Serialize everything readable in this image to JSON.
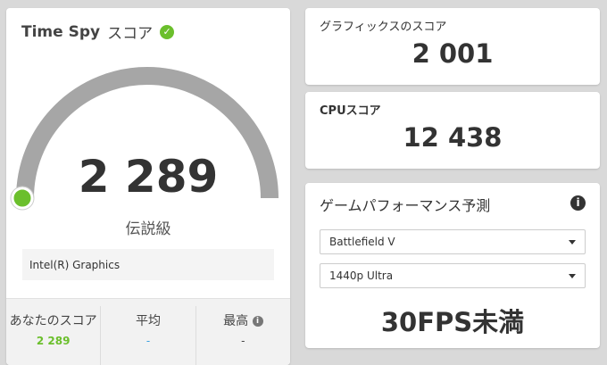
{
  "main": {
    "title_en": "Time Spy",
    "title_jp": "スコア",
    "score": "2 289",
    "score_fraction": 0.0,
    "rank": "伝説級",
    "gpu": "Intel(R) Graphics",
    "stats": [
      {
        "label": "あなたのスコア",
        "value": "2 289",
        "color": "#6bbf2c"
      },
      {
        "label": "平均",
        "value": "-",
        "color": "#3aa0e0"
      },
      {
        "label": "最高",
        "value": "-",
        "color": "#333333"
      }
    ]
  },
  "graphics": {
    "label": "グラフィックスのスコア",
    "value": "2 001"
  },
  "cpu": {
    "label": "CPUスコア",
    "value": "12 438"
  },
  "perf": {
    "label": "ゲームパフォーマンス予測",
    "game": "Battlefield V",
    "setting": "1440p Ultra",
    "result": "30FPS未満"
  },
  "colors": {
    "accent": "#6bbf2c",
    "gauge": "#a6a6a6"
  }
}
